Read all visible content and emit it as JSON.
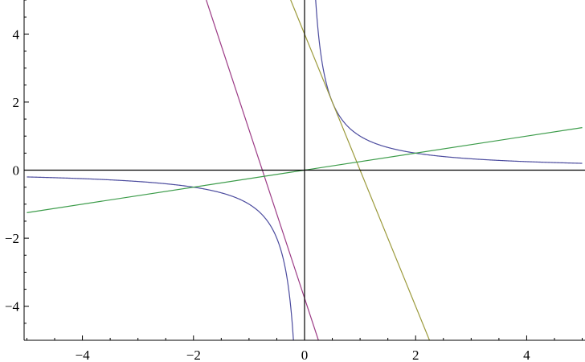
{
  "chart_data": {
    "type": "line",
    "title": "",
    "xlabel": "",
    "ylabel": "",
    "xlim": [
      -5.05,
      5.05
    ],
    "ylim": [
      -5,
      5
    ],
    "grid": false,
    "x_ticks": [
      -4,
      -2,
      0,
      2,
      4
    ],
    "y_ticks": [
      -4,
      -2,
      0,
      2,
      4
    ],
    "x_tick_labels": [
      "−4",
      "−2",
      "0",
      "2",
      "4"
    ],
    "y_tick_labels": [
      "−4",
      "−2",
      "0",
      "2",
      "4"
    ],
    "series": [
      {
        "kind": "function",
        "color": "#4b4b9e",
        "x": [
          -5,
          -4,
          -3,
          -2,
          -1.5,
          -1,
          -0.7,
          -0.5,
          -0.35,
          -0.25,
          -0.2,
          0.2,
          0.25,
          0.35,
          0.5,
          0.7,
          1,
          1.5,
          2,
          3,
          4,
          5
        ],
        "y": [
          -0.2,
          -0.25,
          -0.333,
          -0.5,
          -0.667,
          -1,
          -1.429,
          -2,
          -2.857,
          -4,
          -5,
          5,
          4,
          2.857,
          2,
          1.429,
          1,
          0.667,
          0.5,
          0.333,
          0.25,
          0.2
        ]
      },
      {
        "kind": "line",
        "color": "#9c3c86",
        "x": [
          -1.77,
          0.25
        ],
        "y": [
          5,
          -5
        ]
      },
      {
        "kind": "line",
        "color": "#9c9a3c",
        "x": [
          -0.25,
          2.25
        ],
        "y": [
          5,
          -5
        ]
      },
      {
        "kind": "line",
        "color": "#3c9c4a",
        "x": [
          -5,
          5
        ],
        "y": [
          -1.25,
          1.25
        ]
      }
    ]
  }
}
